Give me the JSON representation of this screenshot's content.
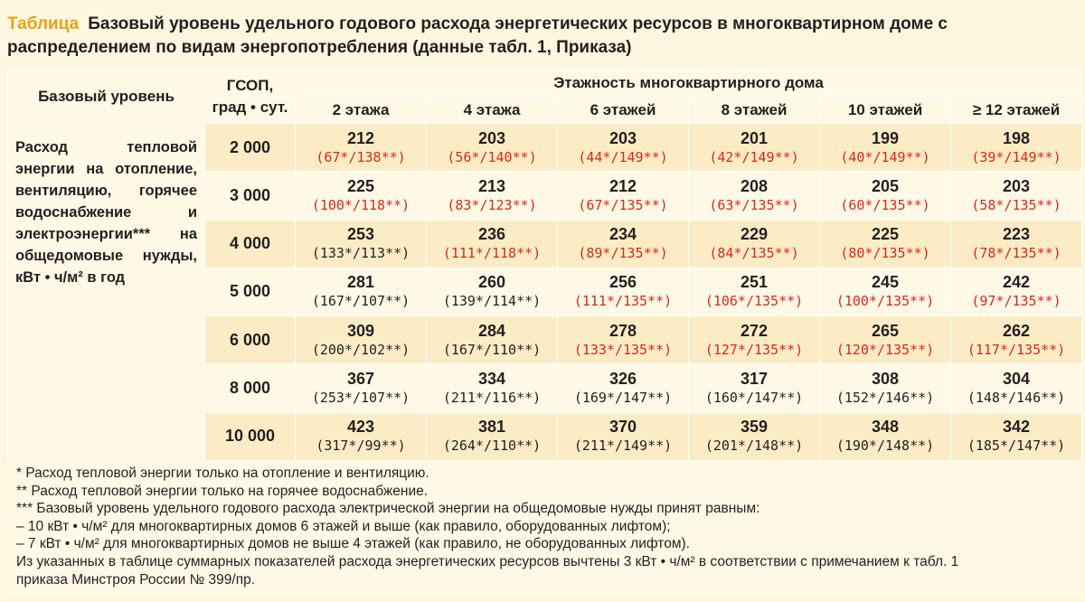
{
  "title": {
    "tag": "Таблица",
    "text": "Базовый уровень удельного годового расхода энергетических ресурсов в многоквартирном доме с распределением по видам энергопотребления (данные табл. 1, Приказа)"
  },
  "header": {
    "base_level": "Базовый уровень",
    "gsop": "ГСОП,\nград • сут.",
    "floors_title": "Этажность многоквартирного дома",
    "floors": [
      "2 этажа",
      "4 этажа",
      "6 этажей",
      "8 этажей",
      "10 этажей",
      "≥ 12 этажей"
    ]
  },
  "description": "Расход тепловой энергии на отопление, вентиляцию, горячее водоснабжение и электроэнергии*** на общедомовые нужды, кВт • ч/м² в год",
  "rows": [
    {
      "gsop": "2 000",
      "cells": [
        {
          "v": "212",
          "s": "(67*/138**)",
          "red": true
        },
        {
          "v": "203",
          "s": "(56*/140**)",
          "red": true
        },
        {
          "v": "203",
          "s": "(44*/149**)",
          "red": true
        },
        {
          "v": "201",
          "s": "(42*/149**)",
          "red": true
        },
        {
          "v": "199",
          "s": "(40*/149**)",
          "red": true
        },
        {
          "v": "198",
          "s": "(39*/149**)",
          "red": true
        }
      ]
    },
    {
      "gsop": "3 000",
      "cells": [
        {
          "v": "225",
          "s": "(100*/118**)",
          "red": true
        },
        {
          "v": "213",
          "s": "(83*/123**)",
          "red": true
        },
        {
          "v": "212",
          "s": "(67*/135**)",
          "red": true
        },
        {
          "v": "208",
          "s": "(63*/135**)",
          "red": true
        },
        {
          "v": "205",
          "s": "(60*/135**)",
          "red": true
        },
        {
          "v": "203",
          "s": "(58*/135**)",
          "red": true
        }
      ]
    },
    {
      "gsop": "4 000",
      "cells": [
        {
          "v": "253",
          "s": "(133*/113**)",
          "red": false
        },
        {
          "v": "236",
          "s": "(111*/118**)",
          "red": true
        },
        {
          "v": "234",
          "s": "(89*/135**)",
          "red": true
        },
        {
          "v": "229",
          "s": "(84*/135**)",
          "red": true
        },
        {
          "v": "225",
          "s": "(80*/135**)",
          "red": true
        },
        {
          "v": "223",
          "s": "(78*/135**)",
          "red": true
        }
      ]
    },
    {
      "gsop": "5 000",
      "cells": [
        {
          "v": "281",
          "s": "(167*/107**)",
          "red": false
        },
        {
          "v": "260",
          "s": "(139*/114**)",
          "red": false
        },
        {
          "v": "256",
          "s": "(111*/135**)",
          "red": true
        },
        {
          "v": "251",
          "s": "(106*/135**)",
          "red": true
        },
        {
          "v": "245",
          "s": "(100*/135**)",
          "red": true
        },
        {
          "v": "242",
          "s": "(97*/135**)",
          "red": true
        }
      ]
    },
    {
      "gsop": "6 000",
      "cells": [
        {
          "v": "309",
          "s": "(200*/102**)",
          "red": false
        },
        {
          "v": "284",
          "s": "(167*/110**)",
          "red": false
        },
        {
          "v": "278",
          "s": "(133*/135**)",
          "red": true
        },
        {
          "v": "272",
          "s": "(127*/135**)",
          "red": true
        },
        {
          "v": "265",
          "s": "(120*/135**)",
          "red": true
        },
        {
          "v": "262",
          "s": "(117*/135**)",
          "red": true
        }
      ]
    },
    {
      "gsop": "8 000",
      "cells": [
        {
          "v": "367",
          "s": "(253*/107**)",
          "red": false
        },
        {
          "v": "334",
          "s": "(211*/116**)",
          "red": false
        },
        {
          "v": "326",
          "s": "(169*/147**)",
          "red": false
        },
        {
          "v": "317",
          "s": "(160*/147**)",
          "red": false
        },
        {
          "v": "308",
          "s": "(152*/146**)",
          "red": false
        },
        {
          "v": "304",
          "s": "(148*/146**)",
          "red": false
        }
      ]
    },
    {
      "gsop": "10 000",
      "cells": [
        {
          "v": "423",
          "s": "(317*/99**)",
          "red": false
        },
        {
          "v": "381",
          "s": "(264*/110**)",
          "red": false
        },
        {
          "v": "370",
          "s": "(211*/149**)",
          "red": false
        },
        {
          "v": "359",
          "s": "(201*/148**)",
          "red": false
        },
        {
          "v": "348",
          "s": "(190*/148**)",
          "red": false
        },
        {
          "v": "342",
          "s": "(185*/147**)",
          "red": false
        }
      ]
    }
  ],
  "notes": [
    "* Расход тепловой энергии только на отопление и вентиляцию.",
    "** Расход тепловой энергии только на горячее водоснабжение.",
    "*** Базовый уровень удельного годового расхода электрической энергии на общедомовые нужды принят равным:",
    "  – 10 кВт • ч/м² для многоквартирных домов 6 этажей и выше (как правило, оборудованных лифтом);",
    "  – 7 кВт • ч/м² для многоквартирных домов не выше 4 этажей (как правило, не оборудованных лифтом).",
    "Из указанных в таблице суммарных показателей расхода энергетических ресурсов вычтены 3 кВт • ч/м² в соответствии с примечанием к табл. 1",
    "приказа Минстроя России № 399/пр."
  ],
  "colors": {
    "accent": "#e8a21a",
    "red_values": "#e1251b",
    "row_dark": "#fcecc6",
    "row_light": "#fff9e6"
  }
}
